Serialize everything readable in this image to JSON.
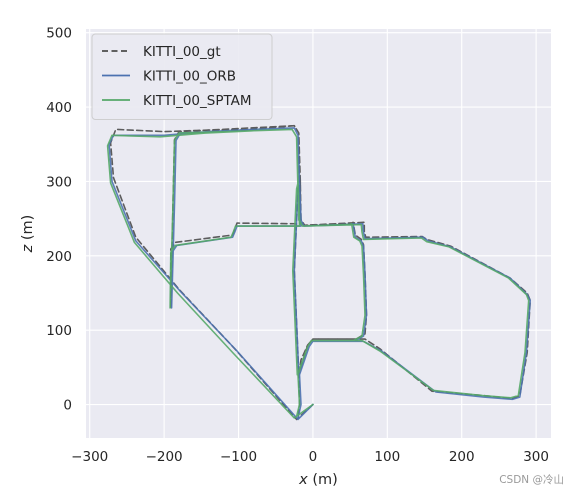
{
  "chart_data": {
    "type": "line",
    "xlabel_var": "x",
    "xlabel_unit": " (m)",
    "ylabel_var": "z",
    "ylabel_unit": " (m)",
    "xlim": [
      -305,
      320
    ],
    "ylim": [
      -45,
      505
    ],
    "xticks": [
      -300,
      -200,
      -100,
      0,
      100,
      200,
      300
    ],
    "yticks": [
      0,
      100,
      200,
      300,
      400,
      500
    ],
    "grid": true,
    "legend_position": "top-left",
    "background_color": "#eaeaf2",
    "series": [
      {
        "name": "KITTI_00_gt",
        "color": "#4c4c4c",
        "style": "dashed",
        "points": [
          [
            0,
            0
          ],
          [
            -22,
            -20
          ],
          [
            -105,
            75
          ],
          [
            -180,
            155
          ],
          [
            -238,
            225
          ],
          [
            -268,
            305
          ],
          [
            -272,
            352
          ],
          [
            -265,
            370
          ],
          [
            -200,
            367
          ],
          [
            -140,
            369
          ],
          [
            -80,
            370
          ],
          [
            -25,
            375
          ],
          [
            -19,
            365
          ],
          [
            -17,
            300
          ],
          [
            -16,
            248
          ],
          [
            -12,
            241
          ],
          [
            69,
            245
          ],
          [
            69,
            233
          ],
          [
            71,
            225
          ],
          [
            147,
            226
          ],
          [
            153,
            222
          ],
          [
            185,
            213
          ],
          [
            265,
            170
          ],
          [
            288,
            150
          ],
          [
            292,
            140
          ],
          [
            288,
            70
          ],
          [
            278,
            12
          ],
          [
            268,
            8
          ],
          [
            230,
            12
          ],
          [
            160,
            18
          ],
          [
            90,
            75
          ],
          [
            70,
            88
          ],
          [
            0,
            88
          ],
          [
            -7,
            80
          ],
          [
            -16,
            60
          ],
          [
            -19,
            40
          ],
          [
            -25,
            180
          ],
          [
            -20,
            290
          ],
          [
            -17,
            300
          ],
          [
            -17,
            243
          ],
          [
            -102,
            244
          ],
          [
            -105,
            236
          ],
          [
            -108,
            228
          ],
          [
            -185,
            218
          ],
          [
            -191,
            209
          ],
          [
            -191,
            130
          ],
          [
            -188,
            270
          ],
          [
            -186,
            356
          ],
          [
            -180,
            367
          ],
          [
            -25,
            375
          ],
          [
            -19,
            365
          ],
          [
            -17,
            250
          ],
          [
            -11,
            241
          ],
          [
            50,
            243
          ],
          [
            54,
            245
          ],
          [
            57,
            228
          ],
          [
            65,
            222
          ],
          [
            68,
            215
          ],
          [
            70,
            175
          ],
          [
            72,
            120
          ],
          [
            70,
            95
          ],
          [
            58,
            88
          ],
          [
            0,
            88
          ],
          [
            -7,
            80
          ],
          [
            -19,
            40
          ],
          [
            -18,
            0
          ],
          [
            -20,
            -18
          ],
          [
            -22,
            -20
          ]
        ]
      },
      {
        "name": "KITTI_00_ORB",
        "color": "#4c72b0",
        "style": "solid",
        "points": [
          [
            0,
            0
          ],
          [
            -20,
            -20
          ],
          [
            -102,
            72
          ],
          [
            -178,
            152
          ],
          [
            -238,
            220
          ],
          [
            -270,
            300
          ],
          [
            -274,
            350
          ],
          [
            -268,
            362
          ],
          [
            -200,
            362
          ],
          [
            -140,
            367
          ],
          [
            -80,
            370
          ],
          [
            -25,
            372
          ],
          [
            -20,
            362
          ],
          [
            -18,
            300
          ],
          [
            -16,
            248
          ],
          [
            -12,
            240
          ],
          [
            67,
            243
          ],
          [
            68,
            232
          ],
          [
            70,
            223
          ],
          [
            148,
            225
          ],
          [
            155,
            220
          ],
          [
            185,
            212
          ],
          [
            265,
            170
          ],
          [
            288,
            148
          ],
          [
            292,
            140
          ],
          [
            287,
            70
          ],
          [
            278,
            10
          ],
          [
            268,
            7
          ],
          [
            230,
            10
          ],
          [
            165,
            17
          ],
          [
            92,
            72
          ],
          [
            68,
            85
          ],
          [
            0,
            85
          ],
          [
            -5,
            78
          ],
          [
            -8,
            70
          ],
          [
            -19,
            40
          ],
          [
            -25,
            180
          ],
          [
            -20,
            290
          ],
          [
            -18,
            298
          ],
          [
            -16,
            240
          ],
          [
            -102,
            240
          ],
          [
            -105,
            232
          ],
          [
            -108,
            225
          ],
          [
            -183,
            214
          ],
          [
            -189,
            205
          ],
          [
            -190,
            130
          ],
          [
            -186,
            270
          ],
          [
            -184,
            355
          ],
          [
            -178,
            365
          ],
          [
            -25,
            372
          ],
          [
            -20,
            362
          ],
          [
            -17,
            248
          ],
          [
            -12,
            240
          ],
          [
            50,
            242
          ],
          [
            54,
            243
          ],
          [
            57,
            225
          ],
          [
            65,
            220
          ],
          [
            68,
            213
          ],
          [
            70,
            175
          ],
          [
            72,
            120
          ],
          [
            68,
            92
          ],
          [
            56,
            85
          ],
          [
            0,
            85
          ],
          [
            -5,
            78
          ],
          [
            -18,
            40
          ],
          [
            -16,
            0
          ],
          [
            -20,
            -18
          ],
          [
            -20,
            -20
          ]
        ]
      },
      {
        "name": "KITTI_00_SPTAM",
        "color": "#55a868",
        "style": "solid",
        "points": [
          [
            0,
            0
          ],
          [
            -25,
            -18
          ],
          [
            -108,
            70
          ],
          [
            -182,
            150
          ],
          [
            -240,
            218
          ],
          [
            -272,
            298
          ],
          [
            -276,
            348
          ],
          [
            -270,
            362
          ],
          [
            -205,
            360
          ],
          [
            -145,
            365
          ],
          [
            -85,
            368
          ],
          [
            -28,
            370
          ],
          [
            -22,
            360
          ],
          [
            -20,
            300
          ],
          [
            -18,
            248
          ],
          [
            -14,
            240
          ],
          [
            65,
            242
          ],
          [
            66,
            232
          ],
          [
            68,
            222
          ],
          [
            146,
            224
          ],
          [
            153,
            219
          ],
          [
            183,
            212
          ],
          [
            263,
            170
          ],
          [
            287,
            148
          ],
          [
            290,
            140
          ],
          [
            285,
            70
          ],
          [
            276,
            12
          ],
          [
            266,
            9
          ],
          [
            228,
            12
          ],
          [
            162,
            19
          ],
          [
            90,
            72
          ],
          [
            66,
            86
          ],
          [
            -2,
            86
          ],
          [
            -7,
            78
          ],
          [
            -10,
            70
          ],
          [
            -21,
            40
          ],
          [
            -27,
            180
          ],
          [
            -22,
            290
          ],
          [
            -20,
            298
          ],
          [
            -18,
            240
          ],
          [
            -104,
            240
          ],
          [
            -107,
            232
          ],
          [
            -110,
            225
          ],
          [
            -185,
            214
          ],
          [
            -191,
            205
          ],
          [
            -192,
            130
          ],
          [
            -188,
            270
          ],
          [
            -186,
            355
          ],
          [
            -180,
            365
          ],
          [
            -28,
            370
          ],
          [
            -22,
            360
          ],
          [
            -19,
            248
          ],
          [
            -14,
            240
          ],
          [
            48,
            242
          ],
          [
            52,
            243
          ],
          [
            55,
            225
          ],
          [
            63,
            220
          ],
          [
            66,
            213
          ],
          [
            68,
            175
          ],
          [
            70,
            120
          ],
          [
            66,
            92
          ],
          [
            54,
            86
          ],
          [
            -2,
            86
          ],
          [
            -7,
            78
          ],
          [
            -20,
            40
          ],
          [
            -18,
            0
          ],
          [
            -22,
            -16
          ],
          [
            -25,
            -18
          ]
        ]
      }
    ]
  },
  "watermark": "CSDN @冷山"
}
